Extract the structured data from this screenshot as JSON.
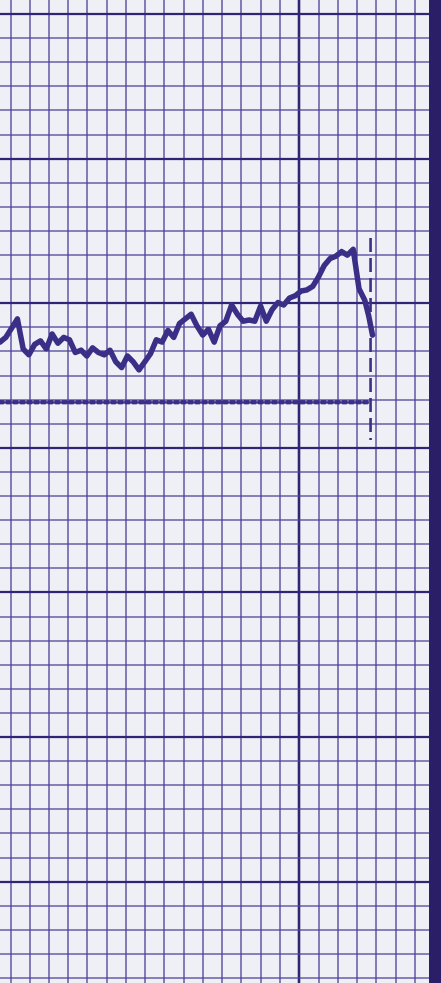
{
  "chart_data": {
    "type": "line",
    "title": "",
    "xlabel": "",
    "ylabel": "",
    "grid": true,
    "x": [
      0,
      3,
      6,
      9,
      12,
      15,
      18,
      21,
      24,
      27,
      30,
      33,
      36,
      39,
      42,
      45,
      48,
      51,
      54,
      57,
      60,
      63,
      66,
      69,
      72,
      75,
      78,
      81,
      84,
      87,
      90,
      93,
      96,
      99,
      102,
      105,
      108,
      111,
      114,
      117,
      120,
      123,
      126,
      129,
      132,
      135,
      138,
      141,
      144,
      147,
      150,
      153,
      156,
      159,
      162,
      165,
      168,
      171,
      174,
      177,
      180,
      183,
      186,
      189,
      191,
      193
    ],
    "series": [
      {
        "values": [
          112,
          116,
          124,
          132,
          106,
          101,
          110,
          113,
          106,
          119,
          111,
          116,
          114,
          103,
          105,
          100,
          107,
          103,
          101,
          105,
          95,
          90,
          100,
          95,
          88,
          95,
          102,
          114,
          112,
          122,
          116,
          128,
          132,
          136,
          126,
          118,
          123,
          112,
          126,
          130,
          144,
          136,
          130,
          131,
          130,
          143,
          130,
          140,
          146,
          144,
          150,
          152,
          156,
          157,
          160,
          168,
          178,
          184,
          186,
          190,
          187,
          192,
          158,
          148,
          135,
          118
        ],
        "color": "#3a2f86"
      }
    ],
    "reference_line": {
      "y": 60,
      "style": "dotted",
      "color": "#3a2f86"
    },
    "end_marker": {
      "x": 192,
      "style": "dashed",
      "color": "#3a2f86"
    },
    "colors": {
      "paper": "#eef0f6",
      "grid_minor": "#4a3f98",
      "grid_major": "#2e2575",
      "trace": "#3a2f86",
      "edge_band": "#2a1f66"
    }
  }
}
